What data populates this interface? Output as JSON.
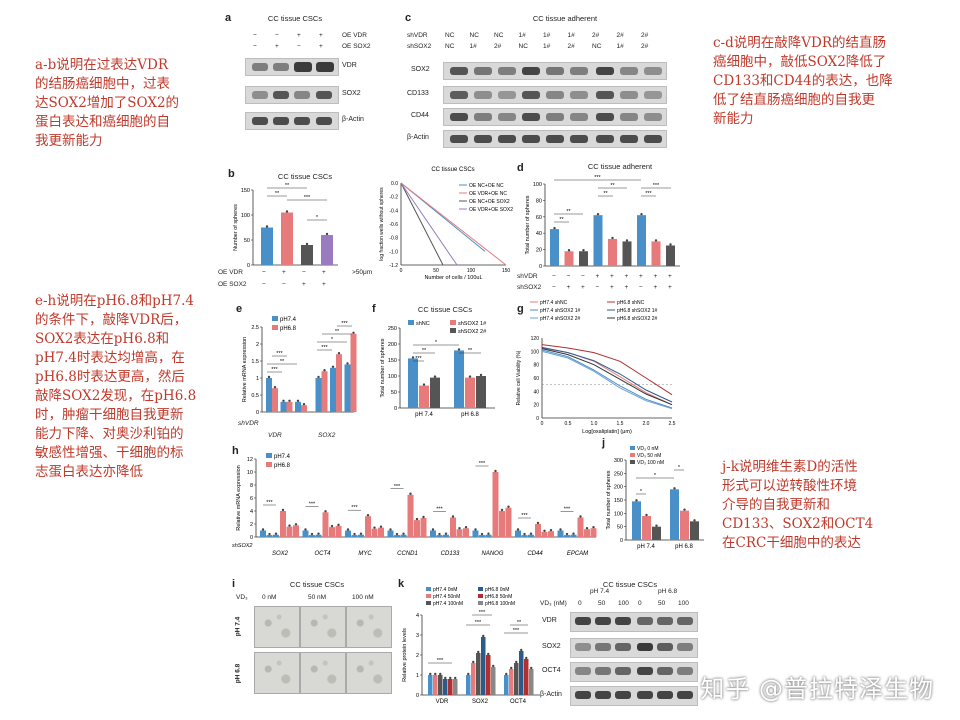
{
  "notes": {
    "ab": [
      "a-b说明在过表达VDR",
      "的结肠癌细胞中，过表",
      "达SOX2增加了SOX2的",
      "蛋白表达和癌细胞的自",
      "我更新能力"
    ],
    "cd": [
      "c-d说明在敲降VDR的结直肠",
      "癌细胞中，敲低SOX2降低了",
      "CD133和CD44的表达，也降",
      "低了结直肠癌细胞的自我更",
      "新能力"
    ],
    "eh": [
      "e-h说明在pH6.8和pH7.4",
      "的条件下，敲降VDR后，",
      "SOX2表达在pH6.8和",
      "pH7.4时表达均增高，在",
      "pH6.8时表达更高，然后",
      "敲降SOX2发现，在pH6.8",
      "时，肿瘤干细胞自我更新",
      "能力下降、对奥沙利铂的",
      "敏感性增强、干细胞的标",
      "志蛋白表达亦降低"
    ],
    "jk": [
      "j-k说明维生素D的活性",
      "形式可以逆转酸性环境",
      "介导的自我更新和",
      "CD133、SOX2和OCT4",
      "在CRC干细胞中的表达"
    ]
  },
  "panel_a": {
    "label": "a",
    "title": "CC tissue CSCs",
    "row_labels": [
      "OE VDR",
      "OE SOX2"
    ],
    "signs": [
      [
        "−",
        "−",
        "+",
        "+"
      ],
      [
        "−",
        "+",
        "−",
        "+"
      ]
    ],
    "bands": [
      "VDR",
      "SOX2",
      "β-Actin"
    ]
  },
  "panel_c": {
    "label": "c",
    "title": "CC tissue adherent",
    "row_labels": [
      "shVDR",
      "shSOX2"
    ],
    "signs": [
      [
        "NC",
        "NC",
        "NC",
        "1#",
        "1#",
        "1#",
        "2#",
        "2#",
        "2#"
      ],
      [
        "NC",
        "1#",
        "2#",
        "NC",
        "1#",
        "2#",
        "NC",
        "1#",
        "2#"
      ]
    ],
    "bands": [
      "SOX2",
      "CD133",
      "CD44",
      "β-Actin"
    ]
  },
  "panel_b": {
    "label": "b",
    "title": "CC tissue CSCs",
    "ylabel": "Number of spheres",
    "row_labels": [
      "OE VDR",
      "OE SOX2"
    ],
    "signs": [
      [
        "−",
        "+",
        "−",
        "+"
      ],
      [
        "−",
        "−",
        "+",
        "+"
      ]
    ],
    "size_note": ">50μm",
    "sig": [
      "**",
      "**",
      "***",
      "*"
    ],
    "ldr": {
      "title": "CC tissue CSCs",
      "xlabel": "Number of cells / 100uL",
      "ylabel": "log fraction wells without spheres",
      "legend": [
        "OE NC+OE NC",
        "OE VDR+OE NC",
        "OE NC+OE SOX2",
        "OE VDR+OE SOX2"
      ],
      "xticks": [
        "0",
        "50",
        "100",
        "150"
      ],
      "yticks": [
        "0.0",
        "-0.2",
        "-0.4",
        "-0.6",
        "-0.8",
        "-1.0",
        "-1.2"
      ]
    }
  },
  "panel_d": {
    "label": "d",
    "title": "CC tissue adherent",
    "ylabel": "Total number of spheres",
    "row_labels": [
      "shVDR",
      "shSOX2"
    ],
    "signs": [
      [
        "−",
        "−",
        "−",
        "+",
        "+",
        "+",
        "+",
        "+",
        "+"
      ],
      [
        "−",
        "+",
        "+",
        "−",
        "+",
        "+",
        "−",
        "+",
        "+"
      ]
    ],
    "sig": [
      "**",
      "**",
      "**",
      "**",
      "***",
      "***",
      "***"
    ]
  },
  "panel_e": {
    "label": "e",
    "ylabel": "Relative mRNA expression",
    "legend": [
      "pH7.4",
      "pH6.8"
    ],
    "groups": [
      "VDR",
      "SOX2"
    ],
    "row_label": "shVDR",
    "sig": [
      "***",
      "**",
      "***",
      "***",
      "*",
      "**",
      "***"
    ]
  },
  "panel_f": {
    "label": "f",
    "title": "CC tissue CSCs",
    "ylabel": "Total number of spheres",
    "legend": [
      "shNC",
      "shSOX2 1#",
      "shSOX2 2#"
    ],
    "groups": [
      "pH 7.4",
      "pH 6.8"
    ],
    "sig": [
      "***",
      "**",
      "*",
      "**"
    ]
  },
  "panel_g": {
    "label": "g",
    "ylabel": "Relative cell Viability (%)",
    "xlabel": "Log[oxaliplatin] (μm)",
    "legend": [
      "pH7.4 shNC",
      "pH7.4 shSOX2 1#",
      "pH7.4 shSOX2 2#",
      "pH6.8 shNC",
      "pH6.8 shSOX2 1#",
      "pH6.8 shSOX2 2#"
    ],
    "xticks": [
      "0",
      "0.5",
      "1.0",
      "1.5",
      "2.0",
      "2.5"
    ],
    "yticks": [
      "0",
      "20",
      "40",
      "60",
      "80",
      "100",
      "120"
    ]
  },
  "panel_h": {
    "label": "h",
    "ylabel": "Relative mRNA expression",
    "legend": [
      "pH7.4",
      "pH6.8"
    ],
    "genes": [
      "SOX2",
      "OCT4",
      "MYC",
      "CCND1",
      "CD133",
      "NANOG",
      "CD44",
      "EPCAM"
    ],
    "row_label": "shSOX2"
  },
  "panel_i": {
    "label": "i",
    "title": "CC tissue CSCs",
    "vd_label": "VD₃",
    "cols": [
      "0 nM",
      "50 nM",
      "100 nM"
    ],
    "rows": [
      "pH 7.4",
      "pH 6.8"
    ]
  },
  "panel_j": {
    "label": "j",
    "ylabel": "Total number of spheres",
    "legend": [
      "VD₃ 0 nM",
      "VD₃ 50 nM",
      "VD₃ 100 nM"
    ],
    "groups": [
      "pH 7.4",
      "pH 6.8"
    ],
    "sig": [
      "*",
      "*",
      "*"
    ]
  },
  "panel_k": {
    "label": "k",
    "title": "CC tissue CSCs",
    "ylabel": "Relative protein levels",
    "legend": [
      "pH7.4 0nM",
      "pH7.4 50nM",
      "pH7.4 100nM",
      "pH6.8 0nM",
      "pH6.8 50nM",
      "pH6.8 100nM"
    ],
    "groups": [
      "VDR",
      "SOX2",
      "OCT4"
    ],
    "sig": [
      "***",
      "***",
      "***",
      "***",
      "**"
    ],
    "blot": {
      "headers": [
        "pH 7.4",
        "pH 6.8"
      ],
      "vd_label": "VD₃ (nM)",
      "doses": [
        "0",
        "50",
        "100",
        "0",
        "50",
        "100"
      ],
      "bands": [
        "VDR",
        "SOX2",
        "OCT4",
        "β-Actin"
      ]
    }
  },
  "watermark": "知乎 @普拉特泽生物",
  "chart_data": [
    {
      "type": "bar",
      "panel": "b",
      "title": "CC tissue CSCs",
      "ylabel": "Number of spheres",
      "ylim": [
        0,
        150
      ],
      "categories": [
        "OE NC+OE NC",
        "OE VDR+OE NC",
        "OE NC+OE SOX2",
        "OE VDR+OE SOX2"
      ],
      "values": [
        75,
        105,
        40,
        60
      ]
    },
    {
      "type": "line",
      "panel": "b-ldr",
      "title": "CC tissue CSCs",
      "xlabel": "Number of cells / 100uL",
      "ylabel": "log fraction wells without spheres",
      "xlim": [
        0,
        150
      ],
      "ylim": [
        -1.2,
        0
      ],
      "series": [
        {
          "name": "OE NC+OE NC",
          "x": [
            0,
            120
          ],
          "y": [
            0,
            -1.0
          ]
        },
        {
          "name": "OE VDR+OE NC",
          "x": [
            0,
            150
          ],
          "y": [
            0,
            -1.2
          ]
        },
        {
          "name": "OE NC+OE SOX2",
          "x": [
            0,
            60
          ],
          "y": [
            0,
            -1.2
          ]
        },
        {
          "name": "OE VDR+OE SOX2",
          "x": [
            0,
            80
          ],
          "y": [
            0,
            -1.2
          ]
        }
      ]
    },
    {
      "type": "bar",
      "panel": "d",
      "title": "CC tissue adherent",
      "ylabel": "Total number of spheres",
      "ylim": [
        0,
        100
      ],
      "categories": [
        "NC/NC",
        "NC/1#",
        "NC/2#",
        "1#/NC",
        "1#/1#",
        "1#/2#",
        "2#/NC",
        "2#/1#",
        "2#/2#"
      ],
      "values": [
        45,
        18,
        18,
        62,
        33,
        30,
        62,
        30,
        25
      ]
    },
    {
      "type": "bar",
      "panel": "e",
      "ylabel": "Relative mRNA expression",
      "ylim": [
        0,
        2.5
      ],
      "categories": [
        "VDR-",
        "VDR+1",
        "VDR+2",
        "SOX2-",
        "SOX2+1",
        "SOX2+2"
      ],
      "series": [
        {
          "name": "pH7.4",
          "values": [
            1.0,
            0.3,
            0.3,
            1.0,
            1.3,
            1.4
          ]
        },
        {
          "name": "pH6.8",
          "values": [
            0.7,
            0.3,
            0.2,
            1.2,
            1.7,
            2.3
          ]
        }
      ]
    },
    {
      "type": "bar",
      "panel": "f",
      "title": "CC tissue CSCs",
      "ylabel": "Total number of spheres",
      "ylim": [
        0,
        250
      ],
      "categories": [
        "pH 7.4",
        "pH 6.8"
      ],
      "series": [
        {
          "name": "shNC",
          "values": [
            155,
            180
          ]
        },
        {
          "name": "shSOX2 1#",
          "values": [
            70,
            95
          ]
        },
        {
          "name": "shSOX2 2#",
          "values": [
            95,
            100
          ]
        }
      ]
    },
    {
      "type": "line",
      "panel": "g",
      "xlabel": "Log[oxaliplatin] (μm)",
      "ylabel": "Relative cell Viability (%)",
      "xlim": [
        0,
        2.5
      ],
      "ylim": [
        0,
        120
      ],
      "series": [
        {
          "name": "pH7.4 shNC",
          "x": [
            0,
            0.5,
            1.0,
            1.5,
            2.0,
            2.5
          ],
          "y": [
            105,
            98,
            85,
            62,
            38,
            20
          ]
        },
        {
          "name": "pH7.4 shSOX2 1#",
          "x": [
            0,
            0.5,
            1.0,
            1.5,
            2.0,
            2.5
          ],
          "y": [
            102,
            92,
            72,
            48,
            28,
            15
          ]
        },
        {
          "name": "pH7.4 shSOX2 2#",
          "x": [
            0,
            0.5,
            1.0,
            1.5,
            2.0,
            2.5
          ],
          "y": [
            100,
            90,
            70,
            45,
            26,
            14
          ]
        },
        {
          "name": "pH6.8 shNC",
          "x": [
            0,
            0.5,
            1.0,
            1.5,
            2.0,
            2.5
          ],
          "y": [
            110,
            105,
            98,
            85,
            60,
            35
          ]
        },
        {
          "name": "pH6.8 shSOX2 1#",
          "x": [
            0,
            0.5,
            1.0,
            1.5,
            2.0,
            2.5
          ],
          "y": [
            106,
            98,
            86,
            66,
            42,
            24
          ]
        },
        {
          "name": "pH6.8 shSOX2 2#",
          "x": [
            0,
            0.5,
            1.0,
            1.5,
            2.0,
            2.5
          ],
          "y": [
            104,
            95,
            80,
            58,
            36,
            20
          ]
        }
      ]
    },
    {
      "type": "bar",
      "panel": "h",
      "ylabel": "Relative mRNA expression",
      "ylim": [
        0,
        12
      ],
      "categories": [
        "SOX2",
        "OCT4",
        "MYC",
        "CCND1",
        "CD133",
        "NANOG",
        "CD44",
        "EPCAM"
      ],
      "series": [
        {
          "name": "pH7.4",
          "values": [
            1.0,
            1.0,
            1.0,
            1.0,
            1.0,
            1.0,
            1.0,
            1.0
          ]
        },
        {
          "name": "pH6.8",
          "values": [
            4.0,
            3.8,
            3.2,
            6.5,
            3.0,
            10.0,
            2.0,
            3.0
          ]
        }
      ]
    },
    {
      "type": "bar",
      "panel": "j",
      "ylabel": "Total number of spheres",
      "ylim": [
        0,
        300
      ],
      "categories": [
        "pH 7.4",
        "pH 6.8"
      ],
      "series": [
        {
          "name": "VD₃ 0 nM",
          "values": [
            145,
            190
          ]
        },
        {
          "name": "VD₃ 50 nM",
          "values": [
            90,
            110
          ]
        },
        {
          "name": "VD₃ 100 nM",
          "values": [
            50,
            70
          ]
        }
      ]
    },
    {
      "type": "bar",
      "panel": "k",
      "title": "CC tissue CSCs",
      "ylabel": "Relative protein levels",
      "ylim": [
        0,
        4
      ],
      "categories": [
        "VDR",
        "SOX2",
        "OCT4"
      ],
      "series": [
        {
          "name": "pH7.4 0nM",
          "values": [
            1.0,
            1.0,
            1.0
          ]
        },
        {
          "name": "pH7.4 50nM",
          "values": [
            1.0,
            1.6,
            1.3
          ]
        },
        {
          "name": "pH7.4 100nM",
          "values": [
            1.0,
            2.1,
            1.6
          ]
        },
        {
          "name": "pH6.8 0nM",
          "values": [
            0.8,
            2.9,
            2.2
          ]
        },
        {
          "name": "pH6.8 50nM",
          "values": [
            0.8,
            2.0,
            1.8
          ]
        },
        {
          "name": "pH6.8 100nM",
          "values": [
            0.8,
            1.4,
            1.3
          ]
        }
      ]
    }
  ]
}
